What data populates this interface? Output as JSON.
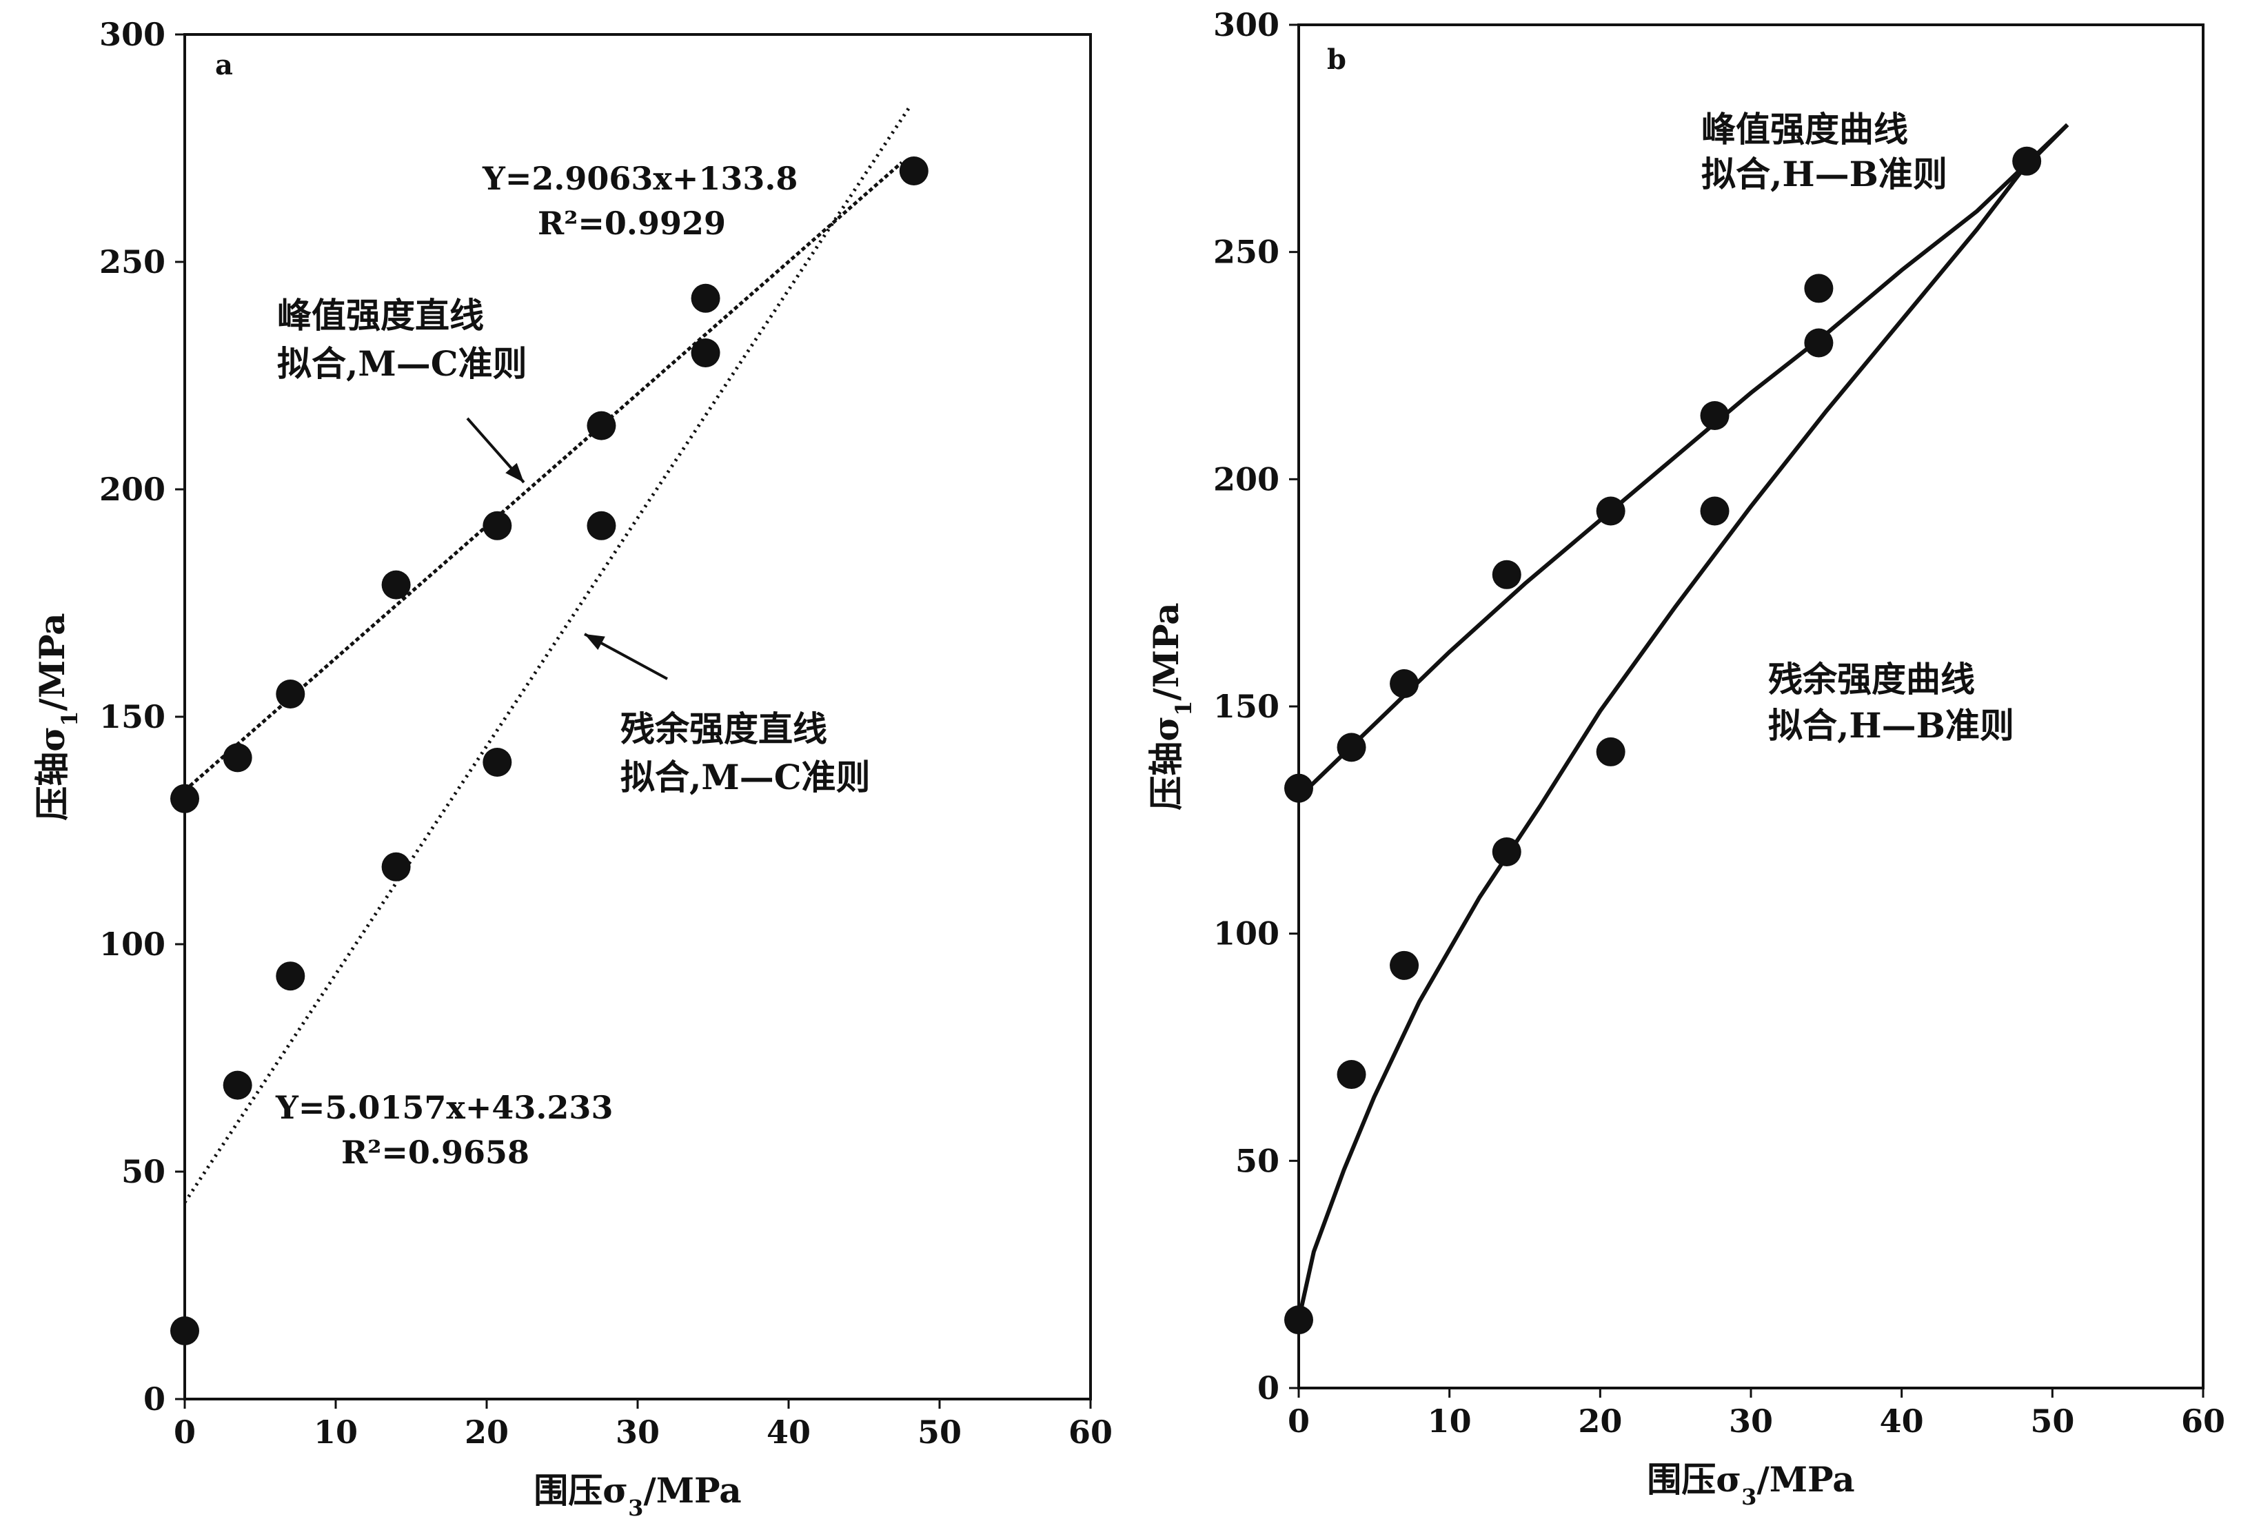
{
  "chart_data": [
    {
      "panel": "a",
      "type": "scatter",
      "xlabel": "围压σ3/MPa",
      "ylabel": "压轴σ1/MPa",
      "xlim": [
        0,
        60
      ],
      "ylim": [
        0,
        300
      ],
      "xticks": [
        0,
        10,
        20,
        30,
        40,
        50,
        60
      ],
      "yticks": [
        0,
        50,
        100,
        150,
        200,
        250,
        300
      ],
      "grid": false,
      "series": [
        {
          "name": "峰值强度",
          "x": [
            0,
            3.5,
            7,
            14,
            20.7,
            27.6,
            34.5,
            34.5,
            48.3
          ],
          "y": [
            132,
            141,
            155,
            179,
            192,
            214,
            242,
            230,
            270
          ]
        },
        {
          "name": "残余强度",
          "x": [
            0,
            3.5,
            7,
            14,
            20.7,
            27.6
          ],
          "y": [
            15,
            69,
            93,
            117,
            140,
            192
          ]
        }
      ],
      "fits": [
        {
          "label_lines": [
            "峰值强度直线",
            "拟合,M—C准则"
          ],
          "equation": "Y=2.9063x+133.8",
          "r2": "R²=0.9929",
          "slope": 2.9063,
          "intercept": 133.8,
          "x_range": [
            0,
            47.5
          ],
          "style": "dashed"
        },
        {
          "label_lines": [
            "残余强度直线",
            "拟合,M—C准则"
          ],
          "equation": "Y=5.0157x+43.233",
          "r2": "R²=0.9658",
          "slope": 5.0157,
          "intercept": 43.233,
          "x_range": [
            0,
            48
          ],
          "style": "dotted"
        }
      ]
    },
    {
      "panel": "b",
      "type": "scatter",
      "xlabel": "围压σ3/MPa",
      "ylabel": "压轴σ1/MPa",
      "xlim": [
        0,
        60
      ],
      "ylim": [
        0,
        300
      ],
      "xticks": [
        0,
        10,
        20,
        30,
        40,
        50,
        60
      ],
      "yticks": [
        0,
        50,
        100,
        150,
        200,
        250,
        300
      ],
      "grid": false,
      "series": [
        {
          "name": "峰值强度",
          "x": [
            0,
            3.5,
            7,
            13.8,
            20.7,
            27.6,
            34.5,
            34.5,
            48.3
          ],
          "y": [
            132,
            141,
            155,
            179,
            193,
            214,
            242,
            230,
            270
          ]
        },
        {
          "name": "残余强度",
          "x": [
            0,
            3.5,
            7,
            13.8,
            20.7,
            27.6
          ],
          "y": [
            15,
            69,
            93,
            118,
            140,
            193
          ]
        }
      ],
      "fits": [
        {
          "label_lines": [
            "峰值强度曲线",
            "拟合,H—B准则"
          ],
          "curve": [
            [
              0,
              130
            ],
            [
              5,
              146
            ],
            [
              10,
              162
            ],
            [
              15,
              177
            ],
            [
              20,
              191
            ],
            [
              25,
              205
            ],
            [
              30,
              219
            ],
            [
              35,
              232
            ],
            [
              40,
              246
            ],
            [
              45,
              259
            ],
            [
              51,
              278
            ]
          ],
          "style": "solid"
        },
        {
          "label_lines": [
            "残余强度曲线",
            "拟合,H—B准则"
          ],
          "curve": [
            [
              0,
              15
            ],
            [
              1,
              30
            ],
            [
              3,
              48
            ],
            [
              5,
              64
            ],
            [
              8,
              85
            ],
            [
              12,
              108
            ],
            [
              16,
              128
            ],
            [
              20,
              149
            ],
            [
              25,
              172
            ],
            [
              30,
              194
            ],
            [
              35,
              215
            ],
            [
              40,
              235
            ],
            [
              45,
              255
            ],
            [
              48,
              268
            ],
            [
              51,
              278
            ]
          ],
          "style": "solid"
        }
      ]
    }
  ]
}
